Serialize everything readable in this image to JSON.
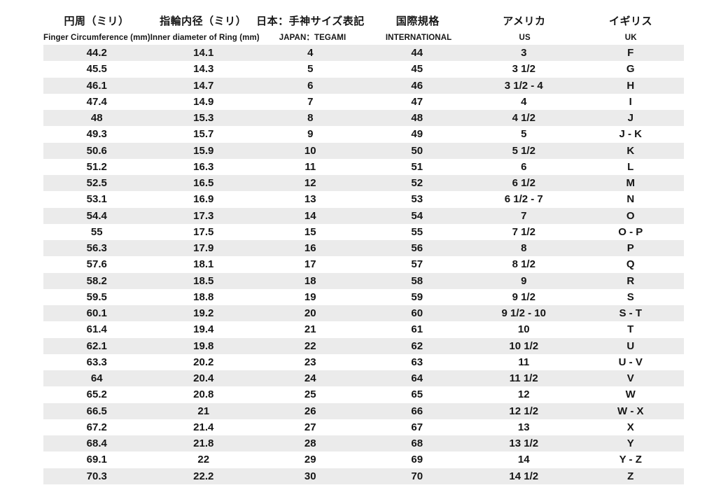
{
  "colors": {
    "background": "#ffffff",
    "stripe": "#ebebeb",
    "text": "#161616"
  },
  "chart_data": {
    "type": "table",
    "columns": [
      {
        "ja": "円周（ミリ）",
        "en": "Finger Circumference (mm)"
      },
      {
        "ja": "指輪内径（ミリ）",
        "en": "Inner diameter of Ring (mm)"
      },
      {
        "ja": "日本：手神サイズ表記",
        "en": "JAPAN：TEGAMI"
      },
      {
        "ja": "国際規格",
        "en": "INTERNATIONAL"
      },
      {
        "ja": "アメリカ",
        "en": "US"
      },
      {
        "ja": "イギリス",
        "en": "UK"
      }
    ],
    "rows": [
      [
        "44.2",
        "14.1",
        "4",
        "44",
        "3",
        "F"
      ],
      [
        "45.5",
        "14.3",
        "5",
        "45",
        "3 1/2",
        "G"
      ],
      [
        "46.1",
        "14.7",
        "6",
        "46",
        "3 1/2 - 4",
        "H"
      ],
      [
        "47.4",
        "14.9",
        "7",
        "47",
        "4",
        "I"
      ],
      [
        "48",
        "15.3",
        "8",
        "48",
        "4 1/2",
        "J"
      ],
      [
        "49.3",
        "15.7",
        "9",
        "49",
        "5",
        "J - K"
      ],
      [
        "50.6",
        "15.9",
        "10",
        "50",
        "5 1/2",
        "K"
      ],
      [
        "51.2",
        "16.3",
        "11",
        "51",
        "6",
        "L"
      ],
      [
        "52.5",
        "16.5",
        "12",
        "52",
        "6 1/2",
        "M"
      ],
      [
        "53.1",
        "16.9",
        "13",
        "53",
        "6 1/2 - 7",
        "N"
      ],
      [
        "54.4",
        "17.3",
        "14",
        "54",
        "7",
        "O"
      ],
      [
        "55",
        "17.5",
        "15",
        "55",
        "7 1/2",
        "O - P"
      ],
      [
        "56.3",
        "17.9",
        "16",
        "56",
        "8",
        "P"
      ],
      [
        "57.6",
        "18.1",
        "17",
        "57",
        "8 1/2",
        "Q"
      ],
      [
        "58.2",
        "18.5",
        "18",
        "58",
        "9",
        "R"
      ],
      [
        "59.5",
        "18.8",
        "19",
        "59",
        "9 1/2",
        "S"
      ],
      [
        "60.1",
        "19.2",
        "20",
        "60",
        "9 1/2 - 10",
        "S - T"
      ],
      [
        "61.4",
        "19.4",
        "21",
        "61",
        "10",
        "T"
      ],
      [
        "62.1",
        "19.8",
        "22",
        "62",
        "10 1/2",
        "U"
      ],
      [
        "63.3",
        "20.2",
        "23",
        "63",
        "11",
        "U - V"
      ],
      [
        "64",
        "20.4",
        "24",
        "64",
        "11 1/2",
        "V"
      ],
      [
        "65.2",
        "20.8",
        "25",
        "65",
        "12",
        "W"
      ],
      [
        "66.5",
        "21",
        "26",
        "66",
        "12 1/2",
        "W - X"
      ],
      [
        "67.2",
        "21.4",
        "27",
        "67",
        "13",
        "X"
      ],
      [
        "68.4",
        "21.8",
        "28",
        "68",
        "13 1/2",
        "Y"
      ],
      [
        "69.1",
        "22",
        "29",
        "69",
        "14",
        "Y - Z"
      ],
      [
        "70.3",
        "22.2",
        "30",
        "70",
        "14 1/2",
        "Z"
      ]
    ]
  }
}
